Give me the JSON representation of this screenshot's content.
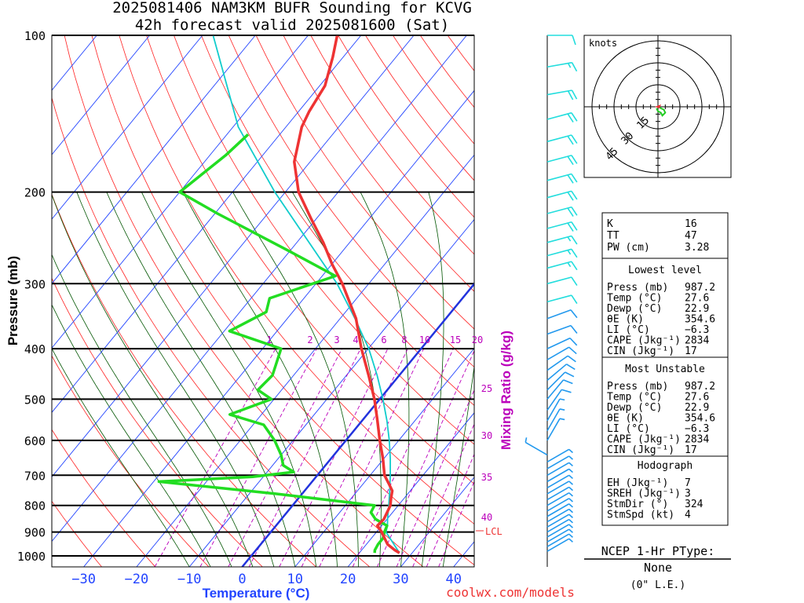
{
  "header": {
    "title": "2025081406 NAM3KM BUFR Sounding for KCVG",
    "subtitle": "42h forecast valid 2025081600 (Sat)"
  },
  "axes": {
    "ylabel": "Pressure (mb)",
    "xlabel": "Temperature (°C)",
    "mixing_label": "Mixing Ratio (g/kg)",
    "pressure_ticks": [
      100,
      200,
      300,
      400,
      500,
      600,
      700,
      800,
      900,
      1000
    ],
    "temperature_ticks": [
      -30,
      -20,
      -10,
      0,
      10,
      20,
      30,
      40
    ],
    "mixing_ratio_labels": [
      "1",
      "2",
      "3",
      "4",
      "6",
      "8",
      "10",
      "15",
      "20",
      "25",
      "30",
      "35",
      "40"
    ]
  },
  "colors": {
    "temperature": "#ee3333",
    "dewpoint": "#22dd22",
    "parcel": "#11cccc",
    "isotherm": "#2244ff",
    "dry_adiabat": "#ff2222",
    "moist_adiabat": "#005500",
    "mixing_ratio": "#bb00bb",
    "barb_upper": "#22dddd",
    "barb_lower": "#2299ee",
    "freezing_line": "#2233dd",
    "stats_text": "#000000"
  },
  "chart_data": {
    "type": "skew-t",
    "temperature_profile": [
      {
        "p": 987,
        "t": 27.6
      },
      {
        "p": 975,
        "t": 26.3
      },
      {
        "p": 950,
        "t": 24.0
      },
      {
        "p": 925,
        "t": 22.5
      },
      {
        "p": 900,
        "t": 21.0
      },
      {
        "p": 875,
        "t": 19.2
      },
      {
        "p": 850,
        "t": 19.4
      },
      {
        "p": 800,
        "t": 18.5
      },
      {
        "p": 775,
        "t": 17.5
      },
      {
        "p": 750,
        "t": 16.6
      },
      {
        "p": 725,
        "t": 14.7
      },
      {
        "p": 700,
        "t": 12.7
      },
      {
        "p": 650,
        "t": 9.8
      },
      {
        "p": 600,
        "t": 6.4
      },
      {
        "p": 550,
        "t": 2.9
      },
      {
        "p": 500,
        "t": -1.0
      },
      {
        "p": 450,
        "t": -5.8
      },
      {
        "p": 400,
        "t": -11.3
      },
      {
        "p": 350,
        "t": -17.0
      },
      {
        "p": 300,
        "t": -25.0
      },
      {
        "p": 275,
        "t": -30.0
      },
      {
        "p": 250,
        "t": -35.0
      },
      {
        "p": 225,
        "t": -41.0
      },
      {
        "p": 200,
        "t": -47.5
      },
      {
        "p": 175,
        "t": -53.0
      },
      {
        "p": 150,
        "t": -57.0
      },
      {
        "p": 140,
        "t": -58.0
      },
      {
        "p": 125,
        "t": -59.0
      },
      {
        "p": 110,
        "t": -62.0
      },
      {
        "p": 100,
        "t": -64.5
      }
    ],
    "dewpoint_profile": [
      {
        "p": 987,
        "t": 22.9
      },
      {
        "p": 975,
        "t": 22.5
      },
      {
        "p": 950,
        "t": 22.2
      },
      {
        "p": 925,
        "t": 22.2
      },
      {
        "p": 900,
        "t": 21.5
      },
      {
        "p": 875,
        "t": 21.0
      },
      {
        "p": 850,
        "t": 17.8
      },
      {
        "p": 825,
        "t": 15.9
      },
      {
        "p": 800,
        "t": 15.5
      },
      {
        "p": 760,
        "t": -5.0
      },
      {
        "p": 720,
        "t": -29.0
      },
      {
        "p": 705,
        "t": -12.0
      },
      {
        "p": 690,
        "t": -5.0
      },
      {
        "p": 670,
        "t": -8.0
      },
      {
        "p": 640,
        "t": -10.0
      },
      {
        "p": 600,
        "t": -13.5
      },
      {
        "p": 560,
        "t": -18.0
      },
      {
        "p": 535,
        "t": -26.0
      },
      {
        "p": 500,
        "t": -20.5
      },
      {
        "p": 480,
        "t": -24.5
      },
      {
        "p": 450,
        "t": -24.0
      },
      {
        "p": 400,
        "t": -26.5
      },
      {
        "p": 370,
        "t": -39.0
      },
      {
        "p": 340,
        "t": -35.0
      },
      {
        "p": 320,
        "t": -36.5
      },
      {
        "p": 290,
        "t": -27.5
      },
      {
        "p": 260,
        "t": -40.0
      },
      {
        "p": 220,
        "t": -59.5
      },
      {
        "p": 200,
        "t": -70.0
      },
      {
        "p": 170,
        "t": -67.0
      },
      {
        "p": 155,
        "t": -66.0
      }
    ],
    "parcel_profile": [
      {
        "p": 987,
        "t": 27.6
      },
      {
        "p": 900,
        "t": 21.8
      },
      {
        "p": 875,
        "t": 21.1
      },
      {
        "p": 850,
        "t": 20.1
      },
      {
        "p": 800,
        "t": 18.2
      },
      {
        "p": 750,
        "t": 16.1
      },
      {
        "p": 700,
        "t": 13.8
      },
      {
        "p": 650,
        "t": 11.2
      },
      {
        "p": 600,
        "t": 8.2
      },
      {
        "p": 550,
        "t": 4.7
      },
      {
        "p": 500,
        "t": 0.6
      },
      {
        "p": 450,
        "t": -4.2
      },
      {
        "p": 400,
        "t": -9.9
      },
      {
        "p": 350,
        "t": -17.2
      },
      {
        "p": 300,
        "t": -26.0
      },
      {
        "p": 250,
        "t": -37.7
      },
      {
        "p": 200,
        "t": -52.0
      },
      {
        "p": 150,
        "t": -69.0
      },
      {
        "p": 100,
        "t": -88.0
      }
    ],
    "lcl": {
      "p": 895,
      "label": "LCL"
    },
    "mixing_ratio_lines": [
      1,
      2,
      3,
      4,
      6,
      8,
      10,
      15,
      20,
      25,
      30,
      35,
      40
    ],
    "wind_barbs": [
      {
        "p": 100,
        "dir": 270,
        "spd": 10
      },
      {
        "p": 115,
        "dir": 280,
        "spd": 15
      },
      {
        "p": 130,
        "dir": 280,
        "spd": 20
      },
      {
        "p": 145,
        "dir": 285,
        "spd": 20
      },
      {
        "p": 160,
        "dir": 285,
        "spd": 20
      },
      {
        "p": 175,
        "dir": 285,
        "spd": 20
      },
      {
        "p": 190,
        "dir": 285,
        "spd": 20
      },
      {
        "p": 205,
        "dir": 285,
        "spd": 20
      },
      {
        "p": 220,
        "dir": 285,
        "spd": 20
      },
      {
        "p": 235,
        "dir": 285,
        "spd": 20
      },
      {
        "p": 250,
        "dir": 285,
        "spd": 15
      },
      {
        "p": 265,
        "dir": 285,
        "spd": 15
      },
      {
        "p": 280,
        "dir": 285,
        "spd": 15
      },
      {
        "p": 300,
        "dir": 285,
        "spd": 10
      },
      {
        "p": 325,
        "dir": 285,
        "spd": 10
      },
      {
        "p": 350,
        "dir": 290,
        "spd": 10
      },
      {
        "p": 375,
        "dir": 290,
        "spd": 10
      },
      {
        "p": 400,
        "dir": 295,
        "spd": 10
      },
      {
        "p": 420,
        "dir": 300,
        "spd": 10
      },
      {
        "p": 440,
        "dir": 305,
        "spd": 10
      },
      {
        "p": 460,
        "dir": 310,
        "spd": 10
      },
      {
        "p": 480,
        "dir": 315,
        "spd": 10
      },
      {
        "p": 500,
        "dir": 320,
        "spd": 10
      },
      {
        "p": 525,
        "dir": 325,
        "spd": 10
      },
      {
        "p": 550,
        "dir": 330,
        "spd": 5
      },
      {
        "p": 575,
        "dir": 330,
        "spd": 5
      },
      {
        "p": 600,
        "dir": 330,
        "spd": 5
      },
      {
        "p": 640,
        "dir": 60,
        "spd": 5
      },
      {
        "p": 660,
        "dir": 300,
        "spd": 5
      },
      {
        "p": 680,
        "dir": 300,
        "spd": 5
      },
      {
        "p": 700,
        "dir": 300,
        "spd": 5
      },
      {
        "p": 720,
        "dir": 300,
        "spd": 5
      },
      {
        "p": 740,
        "dir": 300,
        "spd": 5
      },
      {
        "p": 760,
        "dir": 300,
        "spd": 5
      },
      {
        "p": 780,
        "dir": 300,
        "spd": 5
      },
      {
        "p": 800,
        "dir": 300,
        "spd": 5
      },
      {
        "p": 820,
        "dir": 300,
        "spd": 5
      },
      {
        "p": 840,
        "dir": 300,
        "spd": 5
      },
      {
        "p": 860,
        "dir": 300,
        "spd": 5
      },
      {
        "p": 880,
        "dir": 300,
        "spd": 5
      },
      {
        "p": 900,
        "dir": 300,
        "spd": 5
      },
      {
        "p": 920,
        "dir": 300,
        "spd": 5
      },
      {
        "p": 940,
        "dir": 300,
        "spd": 5
      },
      {
        "p": 960,
        "dir": 300,
        "spd": 5
      },
      {
        "p": 980,
        "dir": 300,
        "spd": 5
      }
    ],
    "hodograph": {
      "ring_labels": [
        "knots",
        "15",
        "30",
        "45"
      ],
      "rings_kt": [
        15,
        30,
        45
      ],
      "trace_kt": [
        [
          0,
          0
        ],
        [
          2,
          1
        ],
        [
          4,
          2
        ],
        [
          5,
          4
        ],
        [
          3,
          6
        ],
        [
          2,
          4
        ],
        [
          0,
          3
        ],
        [
          -1,
          1
        ]
      ]
    }
  },
  "stats": {
    "general": [
      {
        "label": "K",
        "value": "16"
      },
      {
        "label": "TT",
        "value": "47"
      },
      {
        "label": "PW (cm)",
        "value": "3.28"
      }
    ],
    "lowest_level": {
      "title": "Lowest level",
      "rows": [
        {
          "label": "Press (mb)",
          "value": "987.2"
        },
        {
          "label": "Temp (°C)",
          "value": "27.6"
        },
        {
          "label": "Dewp (°C)",
          "value": "22.9"
        },
        {
          "label": "θE (K)",
          "value": "354.6"
        },
        {
          "label": "LI (°C)",
          "value": "−6.3"
        },
        {
          "label": "CAPE (Jkg⁻¹)",
          "value": "2834"
        },
        {
          "label": "CIN (Jkg⁻¹)",
          "value": "17"
        }
      ]
    },
    "most_unstable": {
      "title": "Most Unstable",
      "rows": [
        {
          "label": "Press (mb)",
          "value": "987.2"
        },
        {
          "label": "Temp (°C)",
          "value": "27.6"
        },
        {
          "label": "Dewp (°C)",
          "value": "22.9"
        },
        {
          "label": "θE (K)",
          "value": "354.6"
        },
        {
          "label": "LI (°C)",
          "value": "−6.3"
        },
        {
          "label": "CAPE (Jkg⁻¹)",
          "value": "2834"
        },
        {
          "label": "CIN (Jkg⁻¹)",
          "value": "17"
        }
      ]
    },
    "hodograph": {
      "title": "Hodograph",
      "rows": [
        {
          "label": "EH (Jkg⁻¹)",
          "value": "7"
        },
        {
          "label": "SREH (Jkg⁻¹)",
          "value": "3"
        },
        {
          "label": "StmDir (°)",
          "value": "324"
        },
        {
          "label": "StmSpd (kt)",
          "value": "4"
        }
      ]
    }
  },
  "ptype": {
    "title": "NCEP 1-Hr PType:",
    "value": "None",
    "note": "(0\" L.E.)"
  },
  "footer": {
    "source": "coolwx.com/models"
  }
}
